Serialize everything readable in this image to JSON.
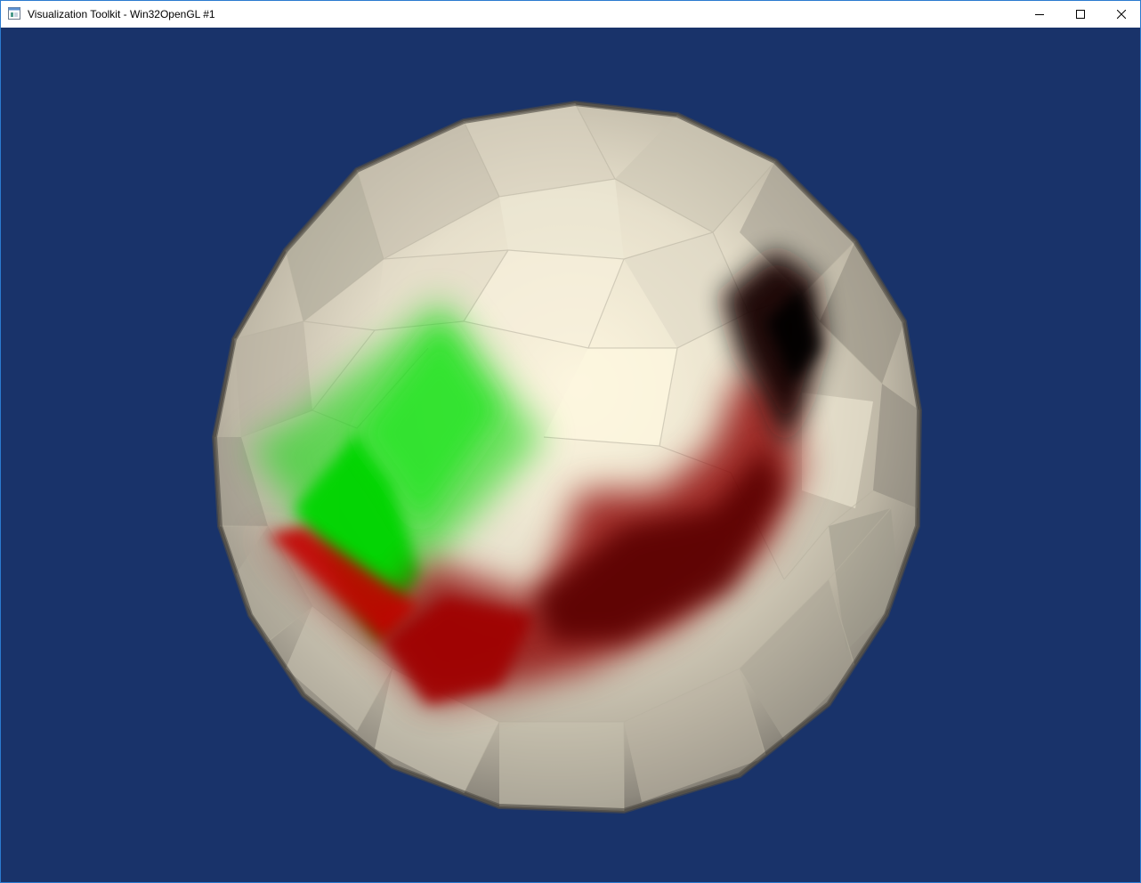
{
  "window": {
    "title": "Visualization Toolkit - Win32OpenGL #1",
    "app_icon": "vtk-window-icon",
    "controls": {
      "minimize_icon": "minimize-icon",
      "maximize_icon": "maximize-icon",
      "close_icon": "close-icon"
    }
  },
  "scene": {
    "background_color": "#19336a",
    "object": "triangulated-sphere",
    "surface_color": "#e9e3d0",
    "highlight_colors": {
      "green": "#00dd00",
      "red": "#8e0000",
      "dark": "#140000"
    }
  }
}
